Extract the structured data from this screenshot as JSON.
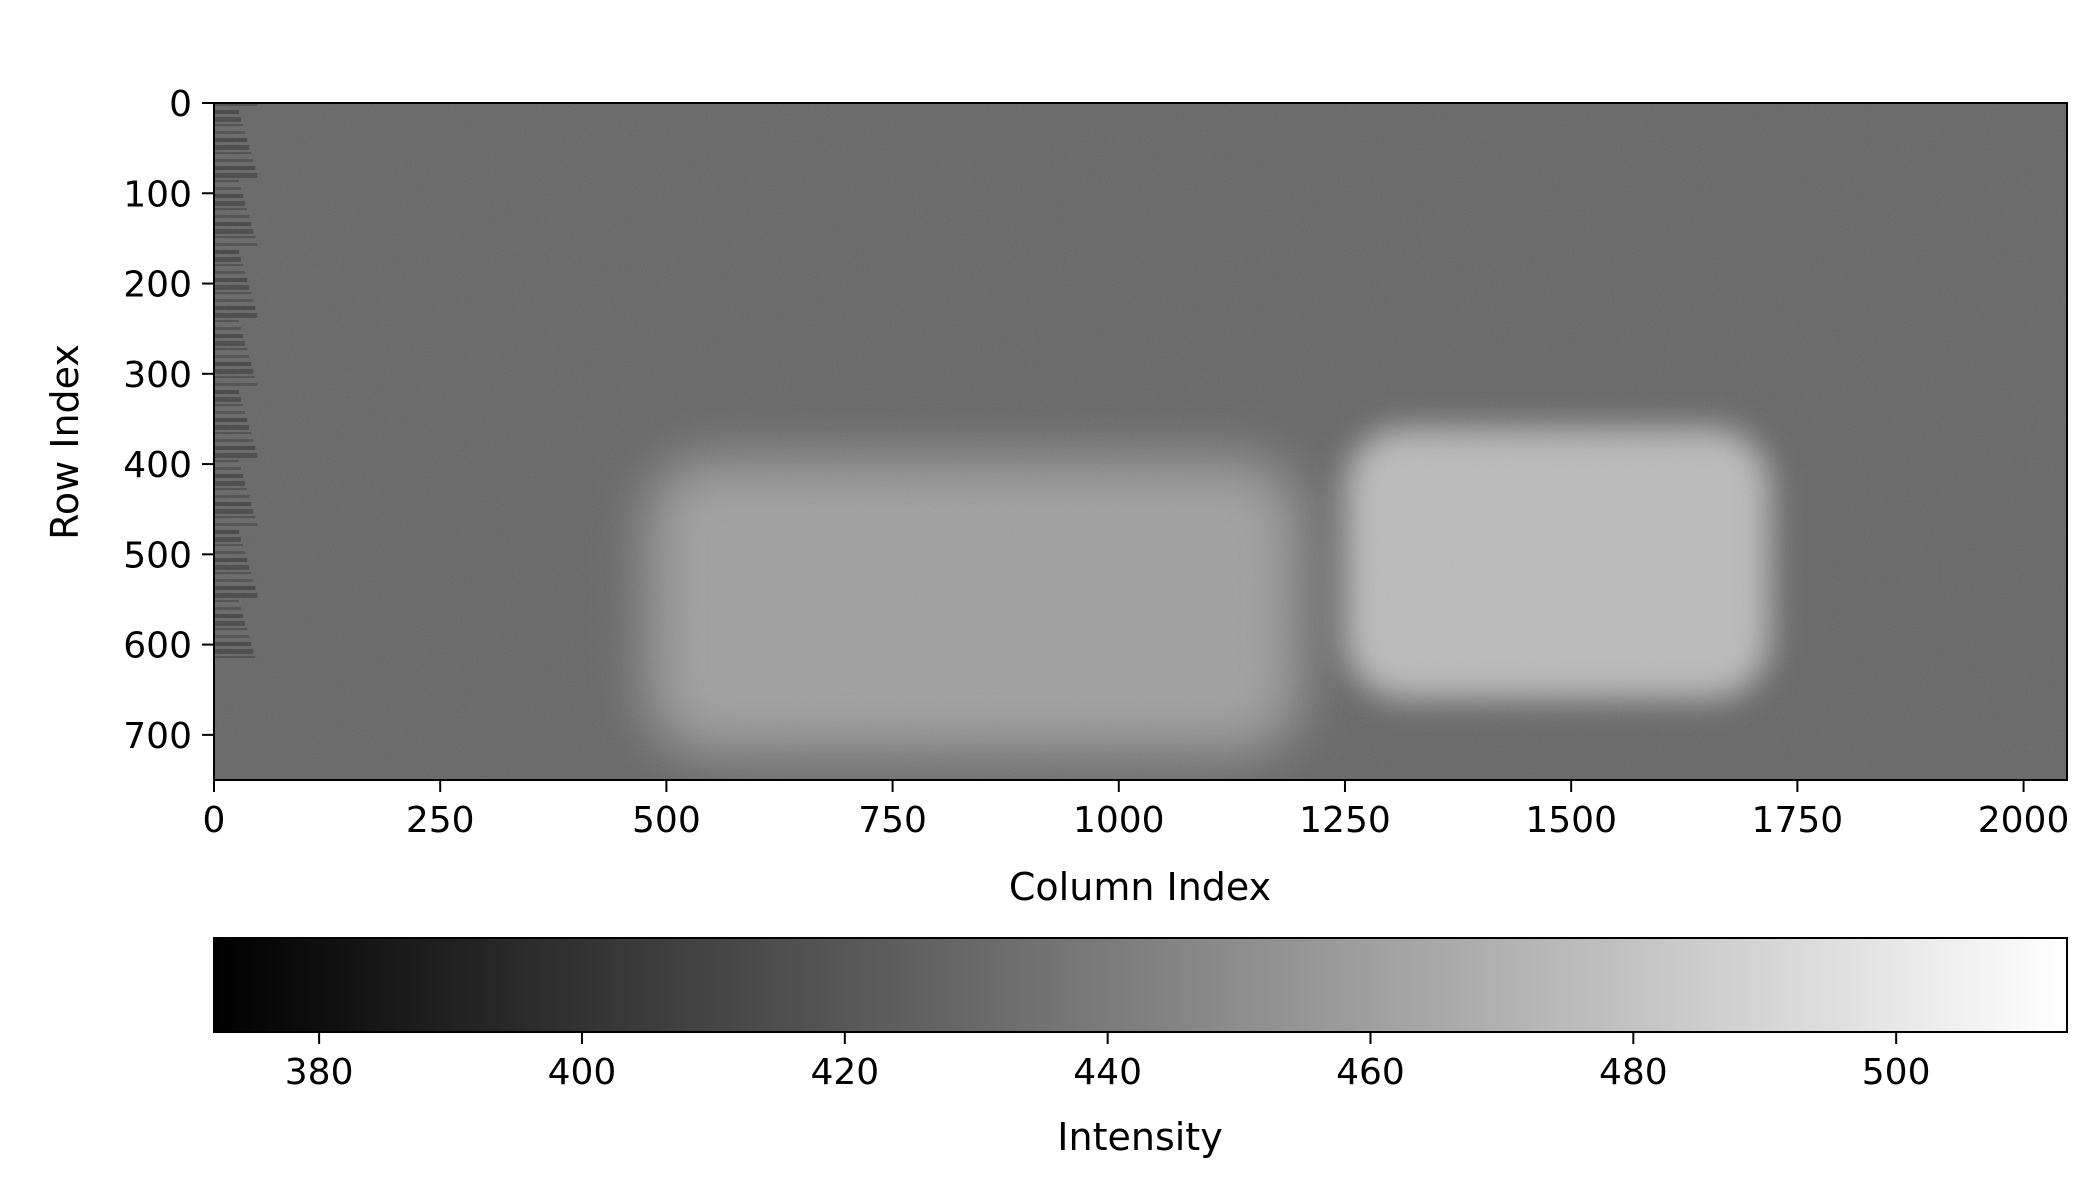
{
  "chart_data": {
    "type": "heatmap",
    "colormap": "gray",
    "grid": false,
    "image": {
      "columns": 2048,
      "rows": 750,
      "xlabel": "Column Index",
      "ylabel": "Row Index",
      "xlim": [
        0,
        2048
      ],
      "ylim": [
        750,
        0
      ],
      "xticks": [
        0,
        250,
        500,
        750,
        1000,
        1250,
        1500,
        1750,
        2000
      ],
      "yticks": [
        0,
        100,
        200,
        300,
        400,
        500,
        600,
        700
      ],
      "background_intensity": 428,
      "bright_regions": [
        {
          "label": "left region",
          "columns": [
            480,
            1200
          ],
          "rows": [
            395,
            720
          ],
          "peak_intensity": 462
        },
        {
          "label": "right region",
          "columns": [
            1250,
            1720
          ],
          "rows": [
            360,
            660
          ],
          "peak_intensity": 478
        }
      ],
      "edge_banding_columns": [
        0,
        50
      ]
    },
    "colorbar": {
      "label": "Intensity",
      "orientation": "horizontal",
      "range": [
        372,
        513
      ],
      "ticks": [
        380,
        400,
        420,
        440,
        460,
        480,
        500
      ]
    }
  }
}
